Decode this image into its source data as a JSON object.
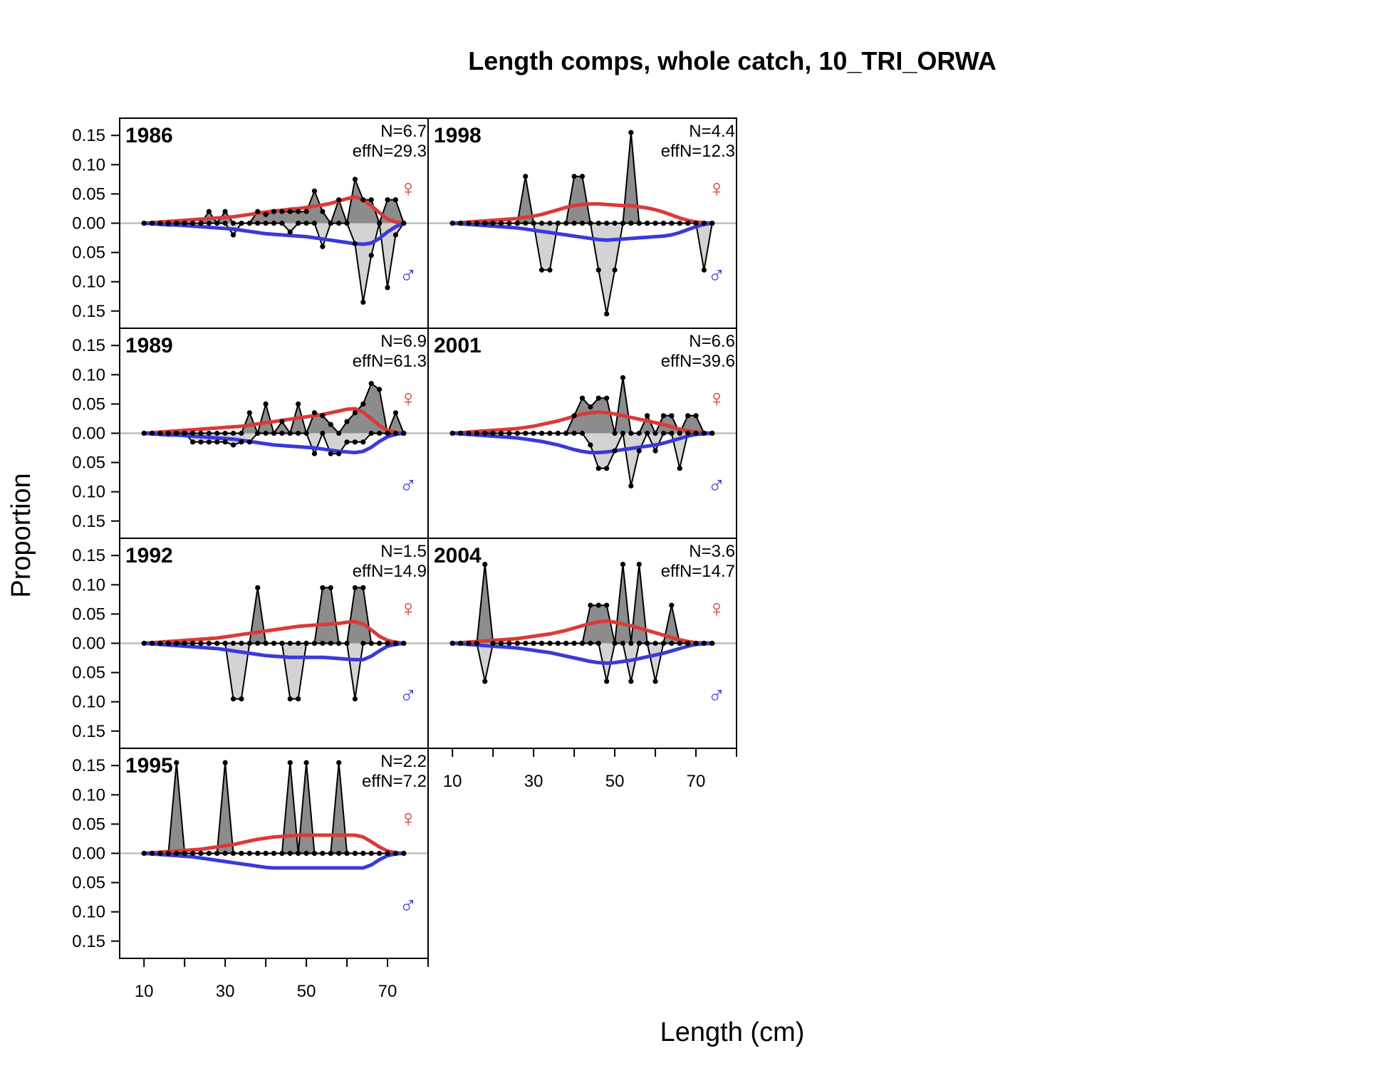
{
  "chart_data": {
    "type": "area",
    "title": "Length comps, whole catch, 10_TRI_ORWA",
    "xlabel": "Length (cm)",
    "ylabel": "Proportion",
    "xlim": [
      4,
      80
    ],
    "ylim": [
      -0.16,
      0.16
    ],
    "x_ticks": [
      10,
      20,
      30,
      40,
      50,
      60,
      70,
      80
    ],
    "x_tick_labels": [
      "10",
      "30",
      "50",
      "70"
    ],
    "y_tick_labels": [
      "0.15",
      "0.10",
      "0.05",
      "0.00",
      "0.05",
      "0.10",
      "0.15"
    ],
    "length_bins": [
      10,
      12,
      14,
      16,
      18,
      20,
      22,
      24,
      26,
      28,
      30,
      32,
      34,
      36,
      38,
      40,
      42,
      44,
      46,
      48,
      50,
      52,
      54,
      56,
      58,
      60,
      62,
      64,
      66,
      68,
      70,
      72,
      74
    ],
    "female_symbol": "♀",
    "male_symbol": "♂",
    "colors": {
      "female_expected": "#d93a3a",
      "male_expected": "#3a3ad9",
      "female_fill": "#8c8c8c",
      "male_fill": "#d3d3d3",
      "zero_line": "#bebebe",
      "points": "#000000"
    },
    "panels": [
      {
        "year": "1986",
        "n": "N=6.7",
        "effn": "effN=29.3",
        "female": [
          0,
          0,
          0,
          0,
          0,
          0,
          0,
          0,
          0.02,
          0,
          0.02,
          0,
          0,
          0,
          0.02,
          0.015,
          0.02,
          0.02,
          0.02,
          0.02,
          0.02,
          0.055,
          0.02,
          0,
          0.04,
          0,
          0.075,
          0.04,
          0.04,
          0,
          0.04,
          0.04,
          0
        ],
        "male": [
          0,
          0,
          0,
          0,
          0,
          0,
          0,
          0,
          0,
          0,
          0,
          0.02,
          0,
          0,
          0,
          0,
          0,
          0,
          0.015,
          0,
          0,
          0,
          0.04,
          0,
          0,
          0,
          0.035,
          0.135,
          0.055,
          0,
          0.11,
          0.02,
          0
        ],
        "female_exp": [
          0,
          0.001,
          0.002,
          0.003,
          0.004,
          0.005,
          0.006,
          0.007,
          0.008,
          0.009,
          0.01,
          0.011,
          0.013,
          0.015,
          0.017,
          0.019,
          0.021,
          0.022,
          0.024,
          0.025,
          0.027,
          0.029,
          0.031,
          0.034,
          0.038,
          0.042,
          0.045,
          0.04,
          0.03,
          0.018,
          0.007,
          0.002,
          0
        ],
        "male_exp": [
          0,
          0.001,
          0.002,
          0.003,
          0.003,
          0.004,
          0.005,
          0.006,
          0.007,
          0.008,
          0.009,
          0.01,
          0.012,
          0.014,
          0.016,
          0.018,
          0.019,
          0.02,
          0.021,
          0.022,
          0.023,
          0.025,
          0.027,
          0.029,
          0.031,
          0.033,
          0.035,
          0.036,
          0.034,
          0.026,
          0.015,
          0.006,
          0
        ]
      },
      {
        "year": "1989",
        "n": "N=6.9",
        "effn": "effN=61.3",
        "female": [
          0,
          0,
          0,
          0,
          0,
          0,
          0,
          0,
          0,
          0,
          0,
          0,
          0,
          0.035,
          0,
          0.05,
          0,
          0.02,
          0,
          0.05,
          0,
          0.035,
          0.03,
          0.015,
          0,
          0.02,
          0.035,
          0.05,
          0.085,
          0.075,
          0,
          0.035,
          0
        ],
        "male": [
          0,
          0,
          0,
          0,
          0,
          0,
          0.015,
          0.015,
          0.015,
          0.015,
          0.015,
          0.02,
          0.015,
          0.015,
          0,
          0,
          0,
          0,
          0,
          0,
          0,
          0.035,
          0,
          0.035,
          0.035,
          0.015,
          0.015,
          0.015,
          0,
          0,
          0,
          0,
          0
        ],
        "female_exp": [
          0,
          0.001,
          0.002,
          0.003,
          0.004,
          0.005,
          0.006,
          0.007,
          0.008,
          0.009,
          0.01,
          0.011,
          0.012,
          0.014,
          0.016,
          0.018,
          0.02,
          0.022,
          0.024,
          0.026,
          0.028,
          0.03,
          0.032,
          0.035,
          0.038,
          0.041,
          0.042,
          0.036,
          0.025,
          0.013,
          0.005,
          0.002,
          0
        ],
        "male_exp": [
          0,
          0.001,
          0.002,
          0.003,
          0.003,
          0.004,
          0.005,
          0.006,
          0.007,
          0.008,
          0.009,
          0.01,
          0.012,
          0.014,
          0.016,
          0.018,
          0.02,
          0.021,
          0.022,
          0.023,
          0.024,
          0.025,
          0.027,
          0.029,
          0.031,
          0.032,
          0.033,
          0.031,
          0.024,
          0.014,
          0.006,
          0.002,
          0
        ]
      },
      {
        "year": "1992",
        "n": "N=1.5",
        "effn": "effN=14.9",
        "female": [
          0,
          0,
          0,
          0,
          0,
          0,
          0,
          0,
          0,
          0,
          0,
          0,
          0,
          0,
          0.095,
          0,
          0,
          0,
          0,
          0,
          0,
          0,
          0.095,
          0.095,
          0,
          0,
          0.095,
          0.095,
          0,
          0,
          0,
          0,
          0
        ],
        "male": [
          0,
          0,
          0,
          0,
          0,
          0,
          0,
          0,
          0,
          0,
          0,
          0.095,
          0.095,
          0,
          0,
          0,
          0,
          0,
          0.095,
          0.095,
          0,
          0,
          0,
          0,
          0,
          0,
          0.095,
          0,
          0,
          0,
          0,
          0,
          0
        ],
        "female_exp": [
          0,
          0.001,
          0.002,
          0.003,
          0.004,
          0.005,
          0.006,
          0.007,
          0.008,
          0.009,
          0.011,
          0.013,
          0.015,
          0.017,
          0.019,
          0.021,
          0.023,
          0.025,
          0.027,
          0.029,
          0.03,
          0.031,
          0.032,
          0.033,
          0.034,
          0.036,
          0.037,
          0.033,
          0.023,
          0.012,
          0.005,
          0.002,
          0
        ],
        "male_exp": [
          0,
          0.001,
          0.002,
          0.003,
          0.004,
          0.005,
          0.006,
          0.007,
          0.008,
          0.009,
          0.011,
          0.013,
          0.015,
          0.017,
          0.019,
          0.021,
          0.022,
          0.023,
          0.024,
          0.024,
          0.024,
          0.024,
          0.024,
          0.025,
          0.026,
          0.027,
          0.028,
          0.028,
          0.022,
          0.013,
          0.005,
          0.002,
          0
        ]
      },
      {
        "year": "1995",
        "n": "N=2.2",
        "effn": "effN=7.2",
        "female": [
          0,
          0,
          0,
          0,
          0.155,
          0,
          0,
          0,
          0,
          0,
          0.155,
          0,
          0,
          0,
          0,
          0,
          0,
          0,
          0.155,
          0,
          0.155,
          0,
          0,
          0,
          0.155,
          0,
          0,
          0,
          0,
          0,
          0,
          0,
          0
        ],
        "male": [
          0,
          0,
          0,
          0,
          0,
          0,
          0,
          0,
          0,
          0,
          0,
          0,
          0,
          0,
          0,
          0,
          0,
          0,
          0,
          0,
          0,
          0,
          0,
          0,
          0,
          0,
          0,
          0,
          0,
          0,
          0,
          0,
          0
        ],
        "female_exp": [
          0,
          0.001,
          0.002,
          0.003,
          0.004,
          0.005,
          0.006,
          0.007,
          0.009,
          0.011,
          0.013,
          0.015,
          0.018,
          0.021,
          0.024,
          0.026,
          0.028,
          0.029,
          0.03,
          0.031,
          0.031,
          0.031,
          0.031,
          0.031,
          0.031,
          0.031,
          0.031,
          0.028,
          0.02,
          0.011,
          0.004,
          0.001,
          0
        ],
        "male_exp": [
          0,
          0.001,
          0.002,
          0.003,
          0.004,
          0.005,
          0.006,
          0.008,
          0.01,
          0.012,
          0.014,
          0.016,
          0.018,
          0.02,
          0.022,
          0.024,
          0.025,
          0.025,
          0.025,
          0.025,
          0.025,
          0.025,
          0.025,
          0.025,
          0.025,
          0.025,
          0.025,
          0.025,
          0.02,
          0.011,
          0.004,
          0.001,
          0
        ]
      },
      {
        "year": "1998",
        "n": "N=4.4",
        "effn": "effN=12.3",
        "female": [
          0,
          0,
          0,
          0,
          0,
          0,
          0,
          0,
          0,
          0.08,
          0,
          0,
          0,
          0,
          0,
          0.08,
          0.08,
          0,
          0,
          0,
          0,
          0,
          0.155,
          0,
          0,
          0,
          0,
          0,
          0,
          0,
          0,
          0,
          0
        ],
        "male": [
          0,
          0,
          0,
          0,
          0,
          0,
          0,
          0,
          0,
          0,
          0,
          0.08,
          0.08,
          0,
          0,
          0,
          0,
          0,
          0.08,
          0.155,
          0.08,
          0,
          0,
          0,
          0,
          0,
          0,
          0,
          0,
          0,
          0,
          0.08,
          0
        ],
        "female_exp": [
          0,
          0.001,
          0.002,
          0.003,
          0.004,
          0.005,
          0.006,
          0.007,
          0.008,
          0.01,
          0.012,
          0.015,
          0.019,
          0.023,
          0.027,
          0.03,
          0.032,
          0.033,
          0.033,
          0.032,
          0.031,
          0.03,
          0.03,
          0.028,
          0.026,
          0.023,
          0.019,
          0.014,
          0.009,
          0.005,
          0.002,
          0.001,
          0
        ],
        "male_exp": [
          0,
          0.001,
          0.002,
          0.003,
          0.004,
          0.005,
          0.006,
          0.007,
          0.008,
          0.01,
          0.012,
          0.014,
          0.016,
          0.018,
          0.02,
          0.022,
          0.024,
          0.026,
          0.028,
          0.029,
          0.028,
          0.027,
          0.026,
          0.025,
          0.024,
          0.023,
          0.022,
          0.02,
          0.016,
          0.011,
          0.006,
          0.002,
          0
        ]
      },
      {
        "year": "2001",
        "n": "N=6.6",
        "effn": "effN=39.6",
        "female": [
          0,
          0,
          0,
          0,
          0,
          0,
          0,
          0,
          0,
          0,
          0,
          0,
          0,
          0,
          0,
          0.03,
          0.06,
          0.045,
          0.06,
          0.06,
          0,
          0.095,
          0,
          0,
          0.03,
          0,
          0.03,
          0.03,
          0,
          0.03,
          0.03,
          0,
          0
        ],
        "male": [
          0,
          0,
          0,
          0,
          0,
          0,
          0,
          0,
          0,
          0,
          0,
          0,
          0,
          0,
          0,
          0,
          0,
          0.02,
          0.06,
          0.06,
          0.03,
          0,
          0.09,
          0.03,
          0,
          0.03,
          0,
          0,
          0.06,
          0,
          0,
          0,
          0
        ],
        "female_exp": [
          0,
          0.001,
          0.002,
          0.003,
          0.004,
          0.005,
          0.006,
          0.007,
          0.008,
          0.01,
          0.012,
          0.015,
          0.018,
          0.021,
          0.025,
          0.029,
          0.033,
          0.035,
          0.036,
          0.035,
          0.033,
          0.03,
          0.027,
          0.024,
          0.021,
          0.018,
          0.015,
          0.011,
          0.007,
          0.004,
          0.002,
          0.001,
          0
        ],
        "male_exp": [
          0,
          0.001,
          0.002,
          0.003,
          0.004,
          0.005,
          0.006,
          0.007,
          0.008,
          0.01,
          0.012,
          0.014,
          0.017,
          0.02,
          0.024,
          0.028,
          0.031,
          0.033,
          0.033,
          0.032,
          0.03,
          0.028,
          0.026,
          0.024,
          0.022,
          0.02,
          0.017,
          0.013,
          0.009,
          0.005,
          0.002,
          0.001,
          0
        ]
      },
      {
        "year": "2004",
        "n": "N=3.6",
        "effn": "effN=14.7",
        "female": [
          0,
          0,
          0,
          0,
          0.135,
          0,
          0,
          0,
          0,
          0,
          0,
          0,
          0,
          0,
          0,
          0,
          0,
          0.065,
          0.065,
          0.065,
          0,
          0.135,
          0,
          0.135,
          0,
          0,
          0,
          0.065,
          0,
          0,
          0,
          0,
          0
        ],
        "male": [
          0,
          0,
          0,
          0,
          0.065,
          0,
          0,
          0,
          0,
          0,
          0,
          0,
          0,
          0,
          0,
          0,
          0,
          0,
          0,
          0.065,
          0,
          0,
          0.065,
          0,
          0,
          0.065,
          0,
          0,
          0,
          0,
          0,
          0,
          0
        ],
        "female_exp": [
          0,
          0.001,
          0.002,
          0.003,
          0.004,
          0.005,
          0.006,
          0.007,
          0.008,
          0.01,
          0.012,
          0.014,
          0.016,
          0.019,
          0.022,
          0.026,
          0.03,
          0.034,
          0.037,
          0.038,
          0.036,
          0.033,
          0.03,
          0.026,
          0.022,
          0.018,
          0.014,
          0.01,
          0.006,
          0.003,
          0.001,
          0.001,
          0
        ],
        "male_exp": [
          0,
          0.001,
          0.002,
          0.003,
          0.004,
          0.005,
          0.006,
          0.007,
          0.008,
          0.01,
          0.012,
          0.014,
          0.016,
          0.019,
          0.022,
          0.025,
          0.028,
          0.031,
          0.033,
          0.034,
          0.033,
          0.031,
          0.029,
          0.026,
          0.023,
          0.02,
          0.017,
          0.013,
          0.009,
          0.005,
          0.002,
          0.001,
          0
        ]
      }
    ]
  }
}
